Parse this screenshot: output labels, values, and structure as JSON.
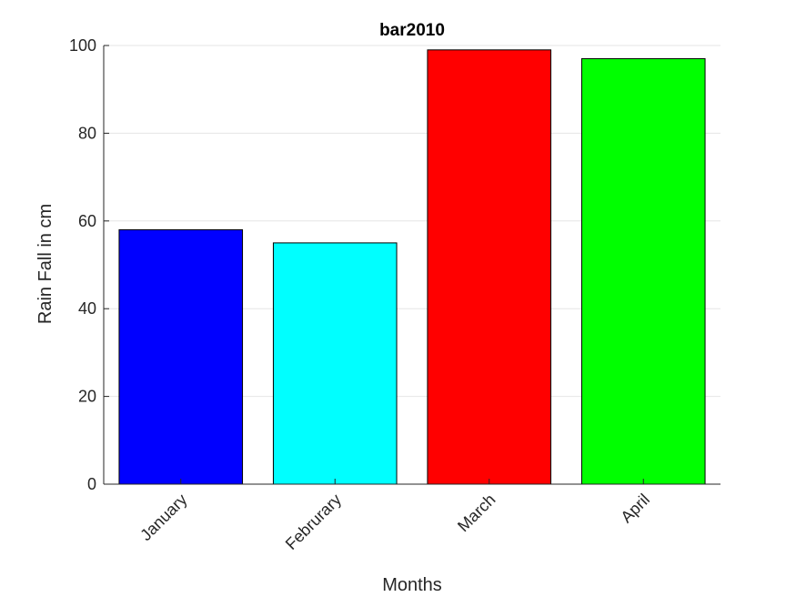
{
  "chart_data": {
    "type": "bar",
    "title": "bar2010",
    "xlabel": "Months",
    "ylabel": "Rain Fall in cm",
    "categories": [
      "January",
      "Februrary",
      "March",
      "April"
    ],
    "values": [
      58,
      55,
      99,
      97
    ],
    "colors": [
      "#0000ff",
      "#00ffff",
      "#ff0000",
      "#00ff00"
    ],
    "ylim": [
      0,
      100
    ],
    "yticks": [
      0,
      20,
      40,
      60,
      80,
      100
    ],
    "grid": "horizontal",
    "legend": "none"
  }
}
